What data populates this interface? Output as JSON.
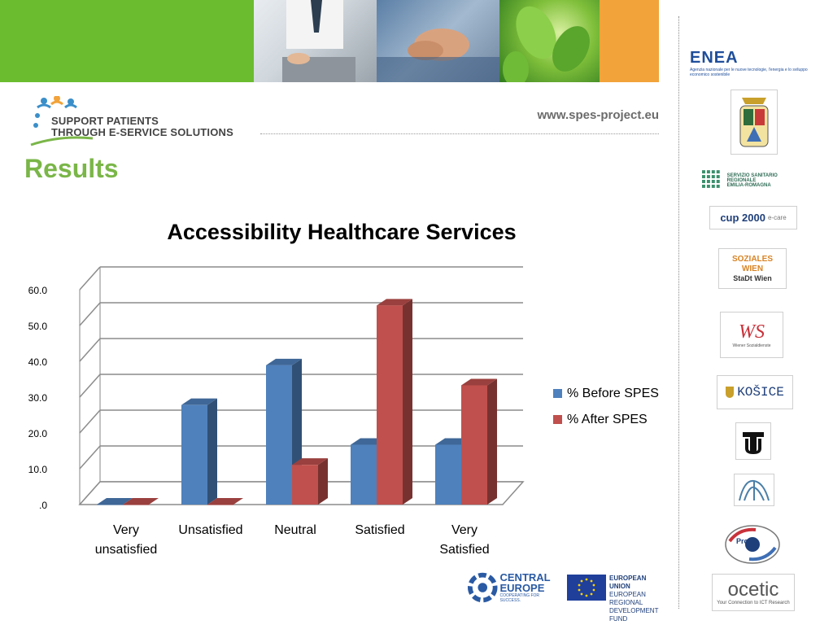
{
  "header": {
    "url": "www.spes-project.eu",
    "colors": {
      "green": "#6bbd2f",
      "orange": "#f2a33a"
    },
    "photos": [
      "doctor-laptop-photo",
      "holding-hands-photo",
      "green-leaves-photo"
    ]
  },
  "logo": {
    "line1": "SUPPORT PATIENTS",
    "line2": "THROUGH E-SERVICE SOLUTIONS"
  },
  "page": {
    "heading": "Results"
  },
  "chart_data": {
    "type": "bar",
    "title": "Accessibility Healthcare Services",
    "categories": [
      "Very unsatisfied",
      "Unsatisfied",
      "Neutral",
      "Satisfied",
      "Very Satisfied"
    ],
    "category_lines": [
      [
        "Very",
        "unsatisfied"
      ],
      [
        "Unsatisfied"
      ],
      [
        "Neutral"
      ],
      [
        "Satisfied"
      ],
      [
        "Very",
        "Satisfied"
      ]
    ],
    "series": [
      {
        "name": "% Before SPES",
        "values": [
          0,
          27.8,
          38.9,
          16.7,
          16.7
        ],
        "color": "#4f81bd"
      },
      {
        "name": "% After SPES",
        "values": [
          0,
          0,
          11.1,
          55.6,
          33.3
        ],
        "color": "#c0504d"
      }
    ],
    "y_ticks": [
      ".0",
      "10.0",
      "20.0",
      "30.0",
      "40.0",
      "50.0",
      "60.0"
    ],
    "ylim": [
      0,
      60
    ],
    "grid": true,
    "legend": "right",
    "xlabel": "",
    "ylabel": ""
  },
  "partners": [
    {
      "id": "enea",
      "name": "ENEA",
      "caption": "Agenzia nazionale per le nuove tecnologie, l'energia e lo sviluppo economico sostenibile"
    },
    {
      "id": "crest",
      "name": "",
      "caption": ""
    },
    {
      "id": "ssr",
      "name": "SERVIZIO SANITARIO REGIONALE",
      "caption": "EMILIA-ROMAGNA"
    },
    {
      "id": "cup2000",
      "name": "cup 2000",
      "caption": "e-care"
    },
    {
      "id": "soziales-wien",
      "name": "SOZIALES WIEN",
      "caption": "StaDt Wien"
    },
    {
      "id": "ws",
      "name": "WS",
      "caption": "Wiener Sozialdienste"
    },
    {
      "id": "kosice",
      "name": "KOŠICE",
      "caption": ""
    },
    {
      "id": "tu",
      "name": "",
      "caption": ""
    },
    {
      "id": "czech-tech",
      "name": "",
      "caption": ""
    },
    {
      "id": "prosoc",
      "name": "Pro",
      "caption": ""
    },
    {
      "id": "ocetic",
      "name": "ocetic",
      "caption": "Your Connection to ICT Research"
    }
  ],
  "footer": {
    "central_europe": "CENTRAL EUROPE",
    "central_europe_tagline": "COOPERATING FOR SUCCESS.",
    "eu_line1": "EUROPEAN UNION",
    "eu_line2": "EUROPEAN REGIONAL",
    "eu_line3": "DEVELOPMENT FUND"
  }
}
